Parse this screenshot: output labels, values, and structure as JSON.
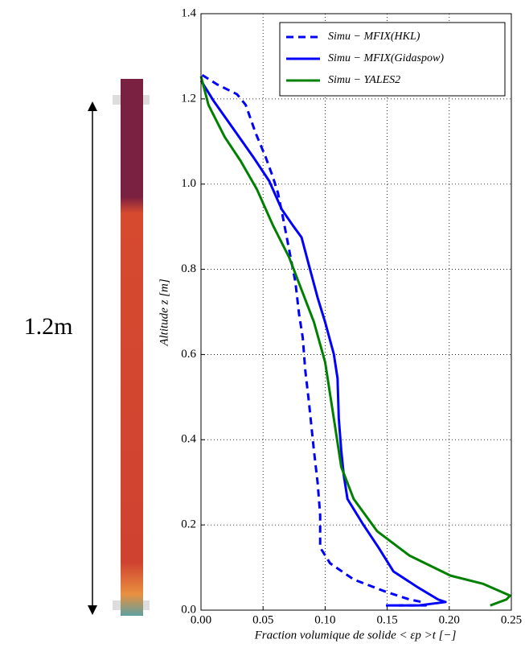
{
  "chart_data": {
    "type": "line",
    "annotation": "1.2m",
    "xlabel": "Fraction volumique de solide  < εp >t [−]",
    "ylabel": "Altitude z [m]",
    "xlim": [
      0,
      0.25
    ],
    "ylim": [
      0,
      1.4
    ],
    "xticks": [
      {
        "value": 0,
        "label": "0.00"
      },
      {
        "value": 0.05,
        "label": "0.05"
      },
      {
        "value": 0.1,
        "label": "0.10"
      },
      {
        "value": 0.15,
        "label": "0.15"
      },
      {
        "value": 0.2,
        "label": "0.20"
      },
      {
        "value": 0.25,
        "label": "0.25"
      }
    ],
    "yticks": [
      {
        "value": 0,
        "label": "0.0"
      },
      {
        "value": 0.2,
        "label": "0.2"
      },
      {
        "value": 0.4,
        "label": "0.4"
      },
      {
        "value": 0.6,
        "label": "0.6"
      },
      {
        "value": 0.8,
        "label": "0.8"
      },
      {
        "value": 1.0,
        "label": "1.0"
      },
      {
        "value": 1.2,
        "label": "1.2"
      },
      {
        "value": 1.4,
        "label": "1.4"
      }
    ],
    "grid": true,
    "legend": "upper right",
    "series": [
      {
        "name": "Simu − MFIX(HKL)",
        "color": "#0000ff",
        "linestyle": "dashed",
        "x": [
          0.001,
          0.013,
          0.029,
          0.036,
          0.044,
          0.052,
          0.058,
          0.062,
          0.066,
          0.071,
          0.076,
          0.079,
          0.082,
          0.084,
          0.087,
          0.091,
          0.094,
          0.096,
          0.096,
          0.104,
          0.123,
          0.149,
          0.168,
          0.178,
          0.181,
          0.159
        ],
        "values": [
          1.256,
          1.234,
          1.211,
          1.186,
          1.12,
          1.064,
          1.016,
          0.979,
          0.922,
          0.846,
          0.771,
          0.695,
          0.639,
          0.563,
          0.487,
          0.374,
          0.298,
          0.223,
          0.147,
          0.11,
          0.072,
          0.043,
          0.025,
          0.019,
          0.011,
          0.011
        ]
      },
      {
        "name": "Simu − MFIX(Gidaspow)",
        "color": "#0000ff",
        "linestyle": "solid",
        "x": [
          0,
          0.01,
          0.026,
          0.042,
          0.055,
          0.065,
          0.074,
          0.081,
          0.087,
          0.094,
          0.1,
          0.107,
          0.11,
          0.111,
          0.113,
          0.115,
          0.118,
          0.13,
          0.143,
          0.155,
          0.175,
          0.191,
          0.197,
          0.175,
          0.149
        ],
        "values": [
          1.243,
          1.196,
          1.13,
          1.064,
          1.007,
          0.941,
          0.903,
          0.875,
          0.809,
          0.733,
          0.676,
          0.601,
          0.544,
          0.45,
          0.374,
          0.317,
          0.261,
          0.204,
          0.147,
          0.091,
          0.053,
          0.025,
          0.019,
          0.011,
          0.011
        ]
      },
      {
        "name": "Simu − YALES2",
        "color": "#008000",
        "linestyle": "solid",
        "x": [
          0,
          0.006,
          0.019,
          0.032,
          0.045,
          0.058,
          0.071,
          0.081,
          0.091,
          0.1,
          0.107,
          0.113,
          0.123,
          0.142,
          0.168,
          0.201,
          0.227,
          0.249,
          0.246,
          0.233
        ],
        "values": [
          1.253,
          1.186,
          1.111,
          1.054,
          0.988,
          0.903,
          0.828,
          0.752,
          0.676,
          0.582,
          0.45,
          0.336,
          0.261,
          0.185,
          0.128,
          0.081,
          0.062,
          0.034,
          0.025,
          0.011
        ]
      }
    ]
  }
}
